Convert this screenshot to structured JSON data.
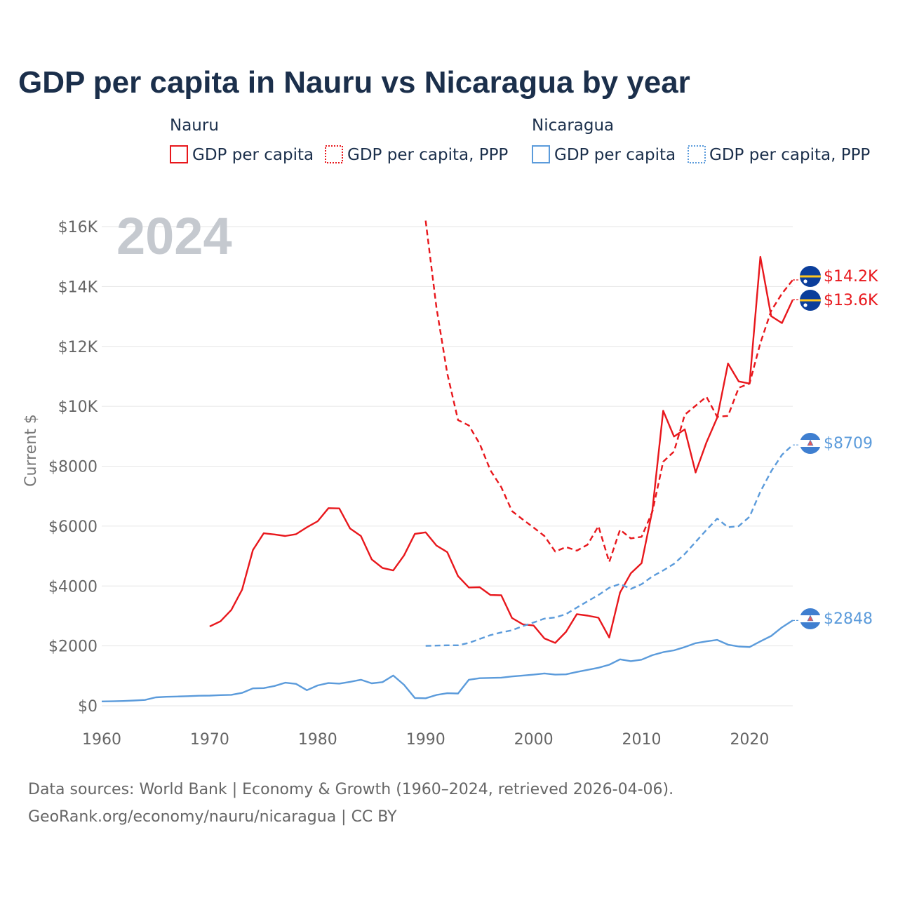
{
  "title": "GDP per capita in Nauru vs Nicaragua by year",
  "year_label": "2024",
  "legend": {
    "groups": [
      {
        "country": "Nauru",
        "color": "#e8171c",
        "items": [
          {
            "label": "GDP per capita",
            "style": "solid"
          },
          {
            "label": "GDP per capita, PPP",
            "style": "dashed"
          }
        ]
      },
      {
        "country": "Nicaragua",
        "color": "#5b9bdb",
        "items": [
          {
            "label": "GDP per capita",
            "style": "solid"
          },
          {
            "label": "GDP per capita, PPP",
            "style": "dashed"
          }
        ]
      }
    ]
  },
  "sources": [
    "Data sources: World Bank | Economy & Growth (1960–2024, retrieved 2026-04-06).",
    "GeoRank.org/economy/nauru/nicaragua | CC BY"
  ],
  "chart_data": {
    "type": "line",
    "title": "GDP per capita in Nauru vs Nicaragua by year",
    "ylabel": "Current $",
    "xlabel": "",
    "xlim": [
      1960,
      2024
    ],
    "ylim": [
      0,
      16000
    ],
    "x_ticks": [
      1960,
      1970,
      1980,
      1990,
      2000,
      2010,
      2020
    ],
    "x_tick_labels": [
      "1960",
      "1970",
      "1980",
      "1990",
      "2000",
      "2010",
      "2020"
    ],
    "y_ticks": [
      0,
      2000,
      4000,
      6000,
      8000,
      10000,
      12000,
      14000,
      16000
    ],
    "y_tick_labels": [
      "$0",
      "$2000",
      "$4000",
      "$6000",
      "$8000",
      "$10K",
      "$12K",
      "$14K",
      "$16K"
    ],
    "grid": true,
    "series": [
      {
        "name": "Nauru GDP per capita",
        "country": "Nauru",
        "color": "#e8171c",
        "style": "solid",
        "end_label": "$13.6K",
        "x": [
          1970,
          1971,
          1972,
          1973,
          1974,
          1975,
          1976,
          1977,
          1978,
          1979,
          1980,
          1981,
          1982,
          1983,
          1984,
          1985,
          1986,
          1987,
          1988,
          1989,
          1990,
          1991,
          1992,
          1993,
          1994,
          1995,
          1996,
          1997,
          1998,
          1999,
          2000,
          2001,
          2002,
          2003,
          2004,
          2005,
          2006,
          2007,
          2008,
          2009,
          2010,
          2011,
          2012,
          2013,
          2014,
          2015,
          2016,
          2017,
          2018,
          2019,
          2020,
          2021,
          2022,
          2023,
          2024
        ],
        "values": [
          2650,
          2820,
          3200,
          3880,
          5200,
          5760,
          5720,
          5670,
          5730,
          5960,
          6160,
          6600,
          6590,
          5920,
          5670,
          4890,
          4600,
          4520,
          5020,
          5740,
          5790,
          5350,
          5130,
          4330,
          3950,
          3960,
          3700,
          3690,
          2930,
          2720,
          2680,
          2250,
          2100,
          2470,
          3060,
          3010,
          2940,
          2280,
          3780,
          4420,
          4760,
          6530,
          9850,
          8990,
          9230,
          7790,
          8790,
          9620,
          11430,
          10830,
          10760,
          14990,
          13010,
          12780,
          13560
        ]
      },
      {
        "name": "Nauru GDP per capita, PPP",
        "country": "Nauru",
        "color": "#e8171c",
        "style": "dashed",
        "end_label": "$14.2K",
        "x": [
          1990,
          1991,
          1992,
          1993,
          1994,
          1995,
          1996,
          1997,
          1998,
          1999,
          2000,
          2001,
          2002,
          2003,
          2004,
          2005,
          2006,
          2007,
          2008,
          2009,
          2010,
          2011,
          2012,
          2013,
          2014,
          2015,
          2016,
          2017,
          2018,
          2019,
          2020,
          2021,
          2022,
          2023,
          2024
        ],
        "values": [
          16200,
          13300,
          11100,
          9540,
          9360,
          8750,
          7860,
          7300,
          6500,
          6220,
          5950,
          5670,
          5150,
          5300,
          5180,
          5380,
          6000,
          4800,
          5880,
          5590,
          5640,
          6480,
          8150,
          8490,
          9720,
          10020,
          10320,
          9650,
          9680,
          10620,
          10760,
          12110,
          13190,
          13760,
          14220
        ]
      },
      {
        "name": "Nicaragua GDP per capita",
        "country": "Nicaragua",
        "color": "#5b9bdb",
        "style": "solid",
        "end_label": "$2848",
        "x": [
          1960,
          1961,
          1962,
          1963,
          1964,
          1965,
          1966,
          1967,
          1968,
          1969,
          1970,
          1971,
          1972,
          1973,
          1974,
          1975,
          1976,
          1977,
          1978,
          1979,
          1980,
          1981,
          1982,
          1983,
          1984,
          1985,
          1986,
          1987,
          1988,
          1989,
          1990,
          1991,
          1992,
          1993,
          1994,
          1995,
          1996,
          1997,
          1998,
          1999,
          2000,
          2001,
          2002,
          2003,
          2004,
          2005,
          2006,
          2007,
          2008,
          2009,
          2010,
          2011,
          2012,
          2013,
          2014,
          2015,
          2016,
          2017,
          2018,
          2019,
          2020,
          2021,
          2022,
          2023,
          2024
        ],
        "values": [
          145,
          150,
          160,
          175,
          195,
          280,
          300,
          310,
          320,
          335,
          340,
          355,
          365,
          430,
          580,
          590,
          660,
          770,
          730,
          520,
          680,
          760,
          740,
          800,
          870,
          750,
          790,
          1010,
          700,
          260,
          250,
          360,
          420,
          410,
          870,
          920,
          930,
          940,
          980,
          1010,
          1040,
          1080,
          1040,
          1050,
          1130,
          1200,
          1270,
          1370,
          1550,
          1490,
          1540,
          1690,
          1790,
          1850,
          1960,
          2090,
          2150,
          2200,
          2040,
          1980,
          1960,
          2150,
          2330,
          2620,
          2850
        ]
      },
      {
        "name": "Nicaragua GDP per capita, PPP",
        "country": "Nicaragua",
        "color": "#5b9bdb",
        "style": "dashed",
        "end_label": "$8709",
        "x": [
          1990,
          1991,
          1992,
          1993,
          1994,
          1995,
          1996,
          1997,
          1998,
          1999,
          2000,
          2001,
          2002,
          2003,
          2004,
          2005,
          2006,
          2007,
          2008,
          2009,
          2010,
          2011,
          2012,
          2013,
          2014,
          2015,
          2016,
          2017,
          2018,
          2019,
          2020,
          2021,
          2022,
          2023,
          2024
        ],
        "values": [
          2000,
          2010,
          2020,
          2020,
          2100,
          2230,
          2360,
          2450,
          2520,
          2660,
          2780,
          2910,
          2950,
          3060,
          3280,
          3490,
          3700,
          3940,
          4070,
          3900,
          4060,
          4320,
          4520,
          4740,
          5070,
          5470,
          5870,
          6250,
          5960,
          6000,
          6310,
          7150,
          7830,
          8380,
          8710
        ]
      }
    ]
  }
}
